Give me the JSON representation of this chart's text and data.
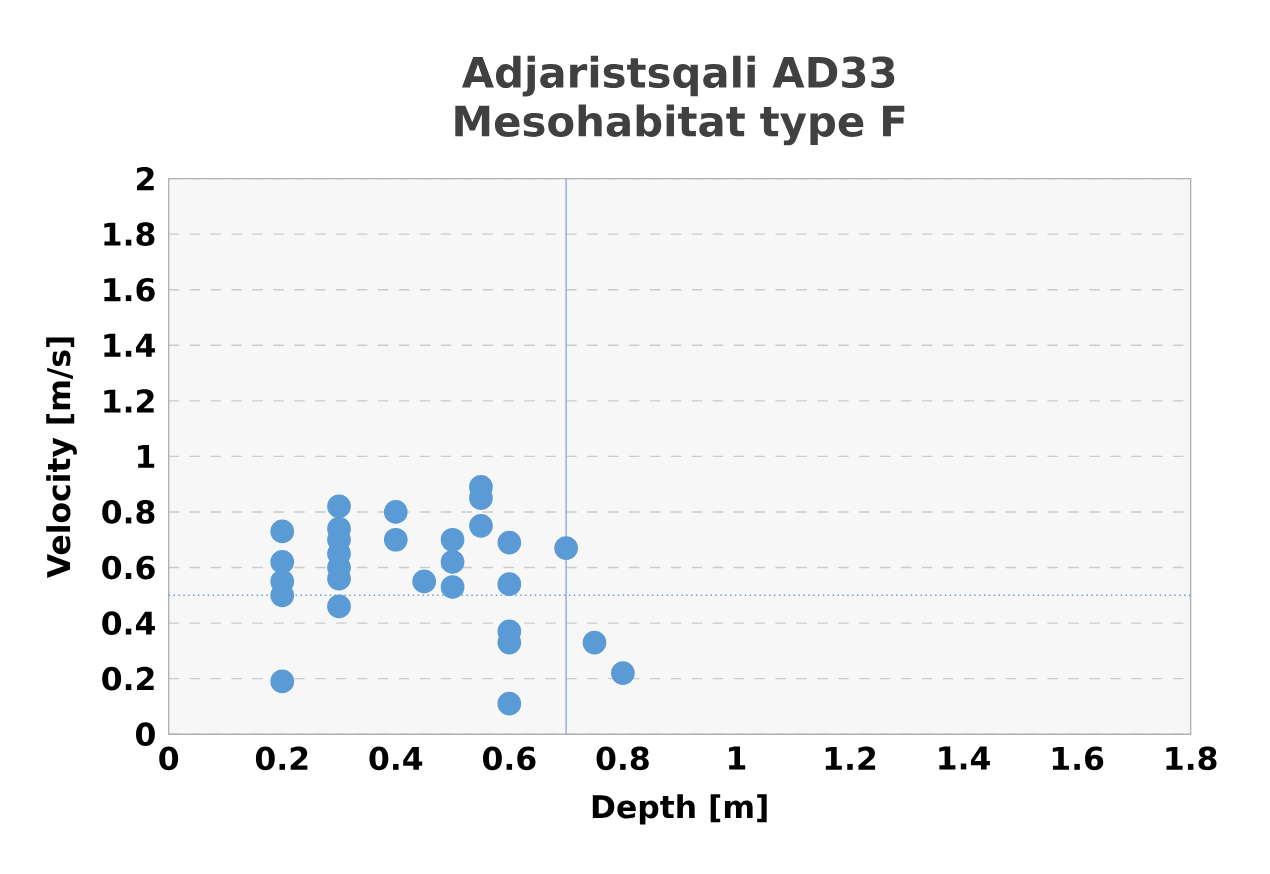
{
  "chart_data": {
    "type": "scatter",
    "title": "Adjaristsqali AD33  Mesohabitat type F",
    "xlabel": "Depth [m]",
    "ylabel": "Velocity [m/s]",
    "series": [
      {
        "color": "#5b9bd5",
        "x": [
          0.2,
          0.2,
          0.2,
          0.2,
          0.2,
          0.3,
          0.3,
          0.3,
          0.3,
          0.3,
          0.3,
          0.3,
          0.4,
          0.4,
          0.45,
          0.5,
          0.5,
          0.5,
          0.55,
          0.55,
          0.55,
          0.6,
          0.6,
          0.6,
          0.6,
          0.6,
          0.7,
          0.75,
          0.8
        ],
        "values": [
          0.73,
          0.62,
          0.55,
          0.5,
          0.19,
          0.82,
          0.74,
          0.7,
          0.65,
          0.6,
          0.56,
          0.46,
          0.8,
          0.7,
          0.55,
          0.7,
          0.62,
          0.53,
          0.89,
          0.85,
          0.75,
          0.69,
          0.54,
          0.37,
          0.33,
          0.11,
          0.67,
          0.33,
          0.22
        ]
      }
    ],
    "xlim": [
      0,
      1.8
    ],
    "xticks": [
      0,
      0.2,
      0.4,
      0.6,
      0.8,
      1,
      1.2,
      1.4,
      1.6,
      1.8
    ],
    "ylim": [
      0,
      2
    ],
    "yticks": [
      0,
      0.2,
      0.4,
      0.6,
      0.8,
      1,
      1.2,
      1.4,
      1.6,
      1.8,
      2
    ],
    "grid": "y",
    "marker": "circle",
    "ref_lines": [
      {
        "axis": "x",
        "value": 0.7,
        "color": "#8ea9db",
        "line_style": "solid"
      },
      {
        "axis": "y",
        "value": 0.5,
        "color": "#5b9bd5",
        "line_style": "dotted"
      }
    ]
  }
}
